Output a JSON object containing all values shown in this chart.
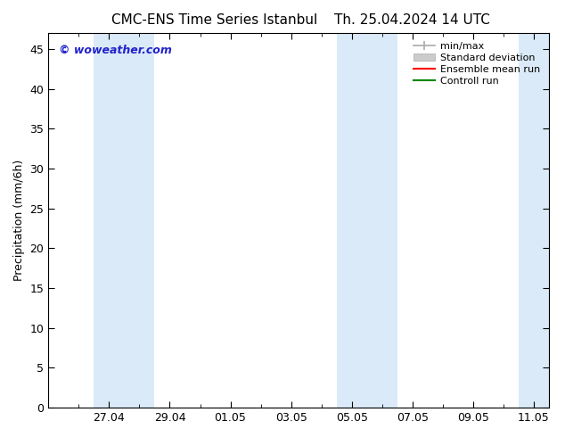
{
  "title_left": "CMC-ENS Time Series Istanbul",
  "title_right": "Th. 25.04.2024 14 UTC",
  "ylabel": "Precipitation (mm/6h)",
  "ylim": [
    0,
    47
  ],
  "yticks": [
    0,
    5,
    10,
    15,
    20,
    25,
    30,
    35,
    40,
    45
  ],
  "xtick_labels": [
    "27.04",
    "29.04",
    "01.05",
    "03.05",
    "05.05",
    "07.05",
    "09.05",
    "11.05"
  ],
  "xtick_positions": [
    2,
    4,
    6,
    8,
    10,
    12,
    14,
    16
  ],
  "xminor_positions": [
    1,
    3,
    5,
    7,
    9,
    11,
    13,
    15
  ],
  "xlim": [
    0,
    16.5
  ],
  "shaded_bands": [
    {
      "x_start": 1.5,
      "x_end": 3.5,
      "color": "#daeaf8"
    },
    {
      "x_start": 9.5,
      "x_end": 11.5,
      "color": "#daeaf8"
    },
    {
      "x_start": 15.5,
      "x_end": 16.5,
      "color": "#daeaf8"
    }
  ],
  "watermark": "© woweather.com",
  "watermark_color": "#2222cc",
  "legend_labels": [
    "min/max",
    "Standard deviation",
    "Ensemble mean run",
    "Controll run"
  ],
  "legend_colors_line": [
    "#aaaaaa",
    "#cccccc",
    "#ff0000",
    "#008800"
  ],
  "background_color": "#ffffff",
  "title_fontsize": 11,
  "axis_label_fontsize": 9,
  "tick_fontsize": 9,
  "legend_fontsize": 8
}
